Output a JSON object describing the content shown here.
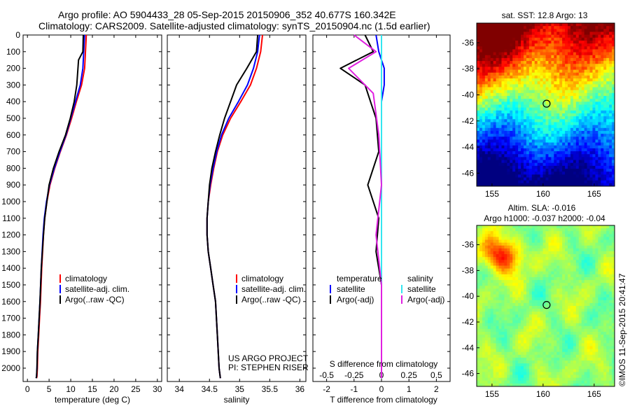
{
  "header": {
    "line1": "Argo profile: AO 5904433_28 05-Sep-2015 20150906_352 40.677S 160.342E",
    "line2": "Climatology: CARS2009. Satellite-adjusted climatology: synTS_20150904.nc (1.5d earlier)"
  },
  "timestamp": "©IMOS 11-Sep-2015 20:41:47",
  "colors": {
    "climatology": "#ff0000",
    "satellite": "#0000ff",
    "argo": "#000000",
    "sal_satellite": "#33e6f0",
    "sal_argo": "#e020e0"
  },
  "chart_data": [
    {
      "type": "line",
      "panel": "temperature",
      "xlabel": "temperature (deg C)",
      "ylabel": "",
      "xlim": [
        -1,
        31
      ],
      "ylim": [
        2080,
        0
      ],
      "xticks": [
        "0",
        "5",
        "10",
        "15",
        "20",
        "25",
        "30"
      ],
      "yticks": [
        "0",
        "100",
        "200",
        "300",
        "400",
        "500",
        "600",
        "700",
        "800",
        "900",
        "1000",
        "1100",
        "1200",
        "1300",
        "1400",
        "1500",
        "1600",
        "1700",
        "1800",
        "1900",
        "2000"
      ],
      "legend": [
        "climatology",
        "satellite-adj. clim.",
        "Argo(..raw -QC)"
      ],
      "series": [
        {
          "name": "climatology",
          "x": [
            13.6,
            13.4,
            13.2,
            12.5,
            11.3,
            10.2,
            9.0,
            7.6,
            6.3,
            5.2,
            4.5,
            4.0,
            3.7,
            3.3,
            3.0,
            2.8,
            2.6,
            2.4,
            2.3,
            2.2,
            2.1
          ],
          "y": [
            0,
            100,
            200,
            300,
            400,
            500,
            600,
            700,
            800,
            900,
            1000,
            1100,
            1200,
            1400,
            1600,
            1700,
            1800,
            1900,
            2000,
            2050,
            2060
          ]
        },
        {
          "name": "satellite-adj. clim.",
          "x": [
            13.2,
            13.0,
            12.8,
            12.2,
            11.1,
            10.0,
            8.9,
            7.5,
            6.2,
            5.1,
            4.4,
            3.9,
            3.6,
            3.2,
            2.9,
            2.7,
            2.5,
            2.3,
            2.2,
            2.1,
            2.0
          ],
          "y": [
            0,
            100,
            200,
            300,
            400,
            500,
            600,
            700,
            800,
            900,
            1000,
            1100,
            1200,
            1400,
            1600,
            1700,
            1800,
            1900,
            2000,
            2050,
            2060
          ]
        },
        {
          "name": "Argo(..raw -QC)",
          "x": [
            12.9,
            12.8,
            11.8,
            11.4,
            10.8,
            9.9,
            8.8,
            7.3,
            6.0,
            5.0,
            4.5,
            4.0,
            3.7,
            3.2,
            2.9,
            2.7,
            2.5,
            2.3,
            2.2,
            2.1,
            2.0
          ],
          "y": [
            0,
            100,
            150,
            300,
            400,
            500,
            600,
            700,
            800,
            900,
            1000,
            1100,
            1200,
            1400,
            1600,
            1700,
            1800,
            1900,
            2000,
            2050,
            2060
          ]
        }
      ]
    },
    {
      "type": "line",
      "panel": "salinity",
      "xlabel": "salinity",
      "xlim": [
        33.8,
        36.1
      ],
      "ylim": [
        2080,
        0
      ],
      "xticks": [
        "34",
        "34.5",
        "35",
        "35.5",
        "36"
      ],
      "legend": [
        "climatology",
        "satellite-adj. clim.",
        "Argo(..raw -QC)"
      ],
      "annotation": [
        "US ARGO PROJECT",
        "PI: STEPHEN RISER"
      ],
      "series": [
        {
          "name": "climatology",
          "x": [
            35.38,
            35.35,
            35.28,
            35.18,
            35.02,
            34.85,
            34.72,
            34.63,
            34.57,
            34.52,
            34.48,
            34.46,
            34.46,
            34.48,
            34.52,
            34.56,
            34.6,
            34.63,
            34.66,
            34.68
          ],
          "y": [
            0,
            100,
            200,
            300,
            400,
            500,
            600,
            700,
            800,
            900,
            1000,
            1100,
            1200,
            1300,
            1400,
            1500,
            1600,
            1800,
            2000,
            2060
          ]
        },
        {
          "name": "satellite-adj. clim.",
          "x": [
            35.33,
            35.3,
            35.23,
            35.13,
            34.98,
            34.82,
            34.7,
            34.62,
            34.56,
            34.51,
            34.48,
            34.46,
            34.46,
            34.48,
            34.52,
            34.56,
            34.6,
            34.63,
            34.66,
            34.68
          ],
          "y": [
            0,
            100,
            200,
            300,
            400,
            500,
            600,
            700,
            800,
            900,
            1000,
            1100,
            1200,
            1300,
            1400,
            1500,
            1600,
            1800,
            2000,
            2060
          ]
        },
        {
          "name": "Argo(..raw -QC)",
          "x": [
            35.3,
            35.28,
            35.12,
            34.95,
            34.85,
            34.75,
            34.67,
            34.6,
            34.54,
            34.5,
            34.48,
            34.46,
            34.46,
            34.48,
            34.52,
            34.56,
            34.6,
            34.63,
            34.66,
            34.68
          ],
          "y": [
            0,
            100,
            200,
            300,
            400,
            500,
            600,
            700,
            800,
            900,
            1000,
            1100,
            1200,
            1300,
            1400,
            1500,
            1600,
            1800,
            2000,
            2060
          ]
        }
      ]
    },
    {
      "type": "line",
      "panel": "difference",
      "xlabel": "T difference from climatology",
      "xlabel_top": "S difference from climatology",
      "xlim": [
        -2.5,
        2.5
      ],
      "ylim": [
        2080,
        0
      ],
      "xticks": [
        "-2",
        "-1",
        "0",
        "1",
        "2"
      ],
      "xticks_top": [
        "-0.5",
        "-0.25",
        "0",
        "0.25",
        "0.5"
      ],
      "legend_temperature": [
        "temperature",
        "satellite",
        "Argo(-adj)"
      ],
      "legend_salinity": [
        "salinity",
        "satellite",
        "Argo(-adj)"
      ],
      "series": [
        {
          "name": "satellite",
          "x": [
            -0.2,
            -0.1,
            0.1,
            0.1,
            0.0,
            0.0,
            0.0,
            0.0,
            0.0,
            0.0,
            0.0,
            0.0,
            0.0,
            0.0
          ],
          "y": [
            0,
            100,
            200,
            300,
            400,
            500,
            700,
            900,
            1100,
            1300,
            1500,
            1700,
            1900,
            2060
          ]
        },
        {
          "name": "Argo(-adj)",
          "x": [
            -0.6,
            -0.3,
            -1.5,
            -0.6,
            -0.4,
            -0.2,
            -0.1,
            -0.5,
            -0.1,
            -0.2,
            0.0,
            0.0,
            0.0,
            0.0
          ],
          "y": [
            0,
            100,
            200,
            300,
            400,
            500,
            700,
            900,
            1100,
            1300,
            1500,
            1700,
            1900,
            2060
          ]
        },
        {
          "name": "satellite",
          "x": [
            0.0,
            0.0,
            0.0,
            0.0,
            0.0,
            0.0,
            0.0,
            0.0,
            0.0,
            0.0
          ],
          "y": [
            0,
            100,
            200,
            400,
            600,
            900,
            1200,
            1500,
            1800,
            2060
          ]
        },
        {
          "name": "Argo(-adj)",
          "x": [
            -1.0,
            -0.2,
            -1.2,
            -0.3,
            -0.1,
            0.0,
            -0.2,
            0.0,
            0.0,
            0.0
          ],
          "y": [
            0,
            100,
            200,
            350,
            600,
            900,
            1200,
            1500,
            1800,
            2060
          ]
        }
      ]
    },
    {
      "type": "heatmap",
      "panel": "sst-map",
      "title": "sat. SST: 12.8 Argo: 13",
      "xticks": [
        "155",
        "160",
        "165"
      ],
      "yticks": [
        "-36",
        "-38",
        "-40",
        "-42",
        "-44",
        "-46"
      ],
      "xlim": [
        153.5,
        167
      ],
      "ylim": [
        -47,
        -34.5
      ],
      "marker": {
        "lon": 160.342,
        "lat": -40.677
      }
    },
    {
      "type": "heatmap",
      "panel": "sla-map",
      "title": "Altim. SLA: -0.016",
      "subtitle": "Argo h1000: -0.037 h2000: -0.04",
      "xticks": [
        "155",
        "160",
        "165"
      ],
      "yticks": [
        "-36",
        "-38",
        "-40",
        "-42",
        "-44",
        "-46"
      ],
      "xlim": [
        153.5,
        167
      ],
      "ylim": [
        -47,
        -34.5
      ],
      "marker": {
        "lon": 160.342,
        "lat": -40.677
      }
    }
  ]
}
